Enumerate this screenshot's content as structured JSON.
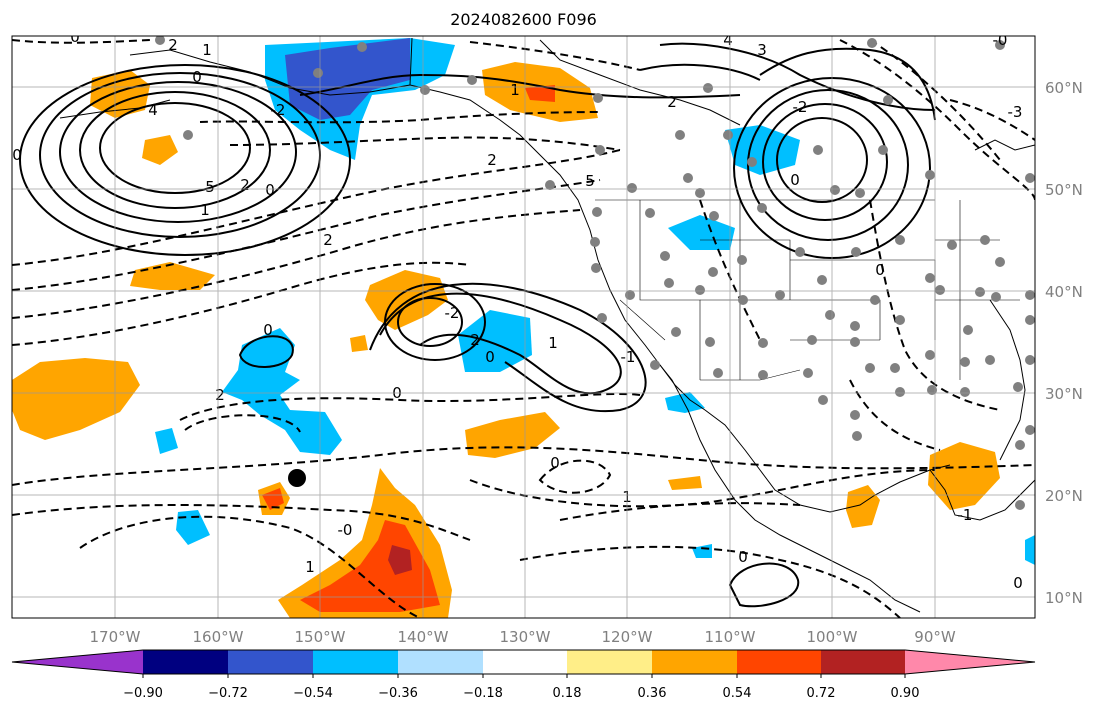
{
  "title": "2024082600 F096",
  "lon_labels": [
    "170°W",
    "160°W",
    "150°W",
    "140°W",
    "130°W",
    "120°W",
    "110°W",
    "100°W",
    "90°W"
  ],
  "lat_labels": [
    "60°N",
    "50°N",
    "40°N",
    "30°N",
    "20°N",
    "10°N"
  ],
  "colorbar": {
    "colors": [
      "#9933cc",
      "#000080",
      "#3355cc",
      "#00bfff",
      "#b0e0ff",
      "#ffffff",
      "#ffee88",
      "#ffa500",
      "#ff4500",
      "#b22222",
      "#ff88aa"
    ],
    "tick_labels": [
      "−0.90",
      "−0.72",
      "−0.54",
      "−0.36",
      "−0.18",
      "0.18",
      "0.36",
      "0.54",
      "0.72",
      "0.90"
    ]
  },
  "contour_labels": [
    "0",
    "2",
    "1",
    "0",
    "4",
    "5",
    "2",
    "0",
    "-2",
    "2",
    "1",
    "0",
    "1",
    "2",
    "4",
    "5",
    "2",
    "3",
    "-2",
    "0",
    "0",
    "0",
    "2",
    "-2",
    "2",
    "1",
    "0",
    "-1",
    "0",
    "0",
    "1",
    "-0",
    "1",
    "0",
    "0",
    "-1",
    "-3",
    "-0"
  ],
  "marker": "black-dot"
}
